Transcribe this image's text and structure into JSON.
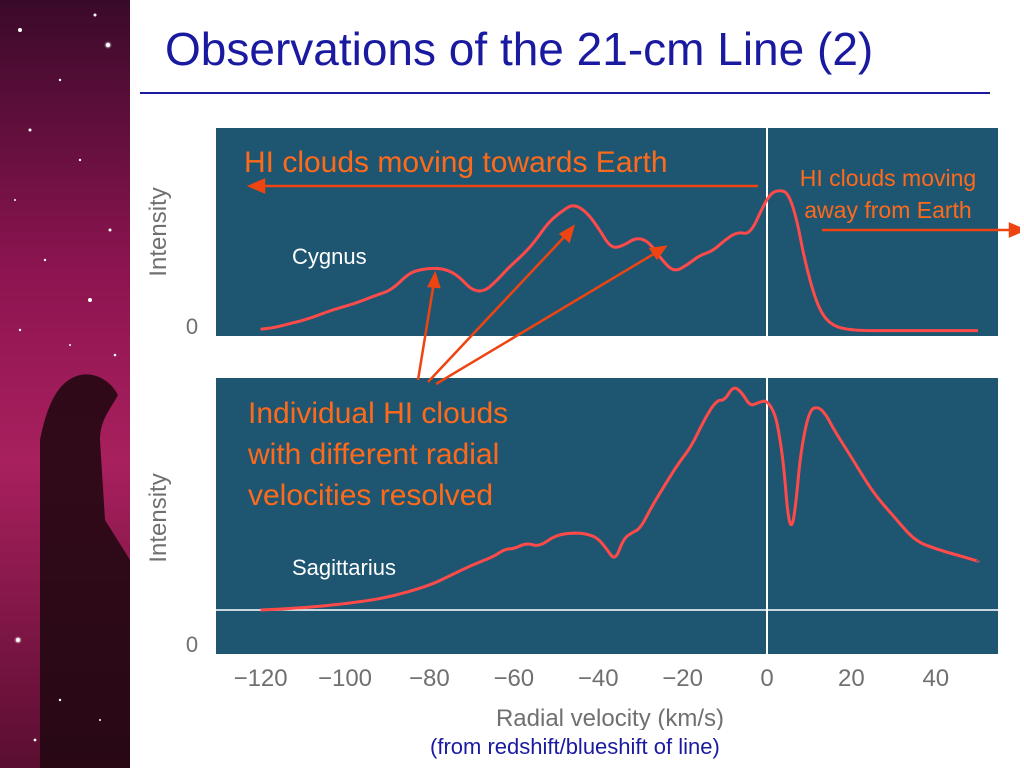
{
  "slide": {
    "title": "Observations of the 21-cm Line (2)",
    "footer_note": "(from redshift/blueshift of line)",
    "callouts": {
      "towards": "HI clouds moving towards Earth",
      "away_line1": "HI clouds moving",
      "away_line2": "away from Earth",
      "individual_line1": "Individual HI clouds",
      "individual_line2": "with different radial",
      "individual_line3": "velocities resolved"
    },
    "colors": {
      "title": "#1a1aa0",
      "panel": "#1e5672",
      "curve": "#ff4a4a",
      "callout": "#ff6a1a",
      "axis_text": "#707070"
    }
  },
  "chart_data": [
    {
      "type": "line",
      "panel_label": "Cygnus",
      "ylabel": "Intensity",
      "y_tick_labels": [
        "0"
      ],
      "xlim": [
        -130,
        55
      ],
      "x": [
        -120,
        -117,
        -113,
        -108,
        -103,
        -98,
        -93,
        -89,
        -85,
        -82,
        -79,
        -76,
        -73,
        -70,
        -67,
        -64,
        -61,
        -58,
        -55,
        -52,
        -49,
        -46,
        -43,
        -40,
        -37,
        -34,
        -31,
        -28,
        -25,
        -22,
        -19,
        -16,
        -13,
        -10,
        -7,
        -4,
        -1,
        1,
        3,
        5,
        7,
        9,
        12,
        15,
        20,
        30,
        40,
        50
      ],
      "y": [
        0.02,
        0.03,
        0.06,
        0.1,
        0.16,
        0.2,
        0.26,
        0.3,
        0.42,
        0.45,
        0.46,
        0.45,
        0.4,
        0.3,
        0.29,
        0.37,
        0.47,
        0.55,
        0.65,
        0.78,
        0.86,
        0.92,
        0.87,
        0.75,
        0.6,
        0.62,
        0.68,
        0.65,
        0.52,
        0.43,
        0.48,
        0.55,
        0.58,
        0.66,
        0.72,
        0.7,
        0.9,
        1.0,
        1.02,
        1.0,
        0.82,
        0.5,
        0.18,
        0.05,
        0.01,
        0.01,
        0.01,
        0.01
      ]
    },
    {
      "type": "line",
      "panel_label": "Sagittarius",
      "ylabel": "Intensity",
      "y_tick_labels": [
        "0"
      ],
      "xlabel": "Radial velocity (km/s)",
      "xlim": [
        -130,
        55
      ],
      "x_tick_labels": [
        "−120",
        "−100",
        "−80",
        "−60",
        "−40",
        "−20",
        "0",
        "20",
        "40"
      ],
      "x_ticks": [
        -120,
        -100,
        -80,
        -60,
        -40,
        -20,
        0,
        20,
        40
      ],
      "x": [
        -120,
        -110,
        -100,
        -90,
        -80,
        -75,
        -70,
        -65,
        -62,
        -60,
        -57,
        -54,
        -50,
        -45,
        -42,
        -40,
        -38,
        -36,
        -34,
        -32,
        -30,
        -27,
        -24,
        -21,
        -18,
        -15,
        -12,
        -10,
        -8,
        -6,
        -4,
        -2,
        0,
        2,
        3,
        4,
        5,
        6,
        7,
        8,
        10,
        12,
        14,
        16,
        20,
        25,
        30,
        35,
        40,
        45,
        50
      ],
      "y": [
        0.0,
        0.01,
        0.03,
        0.06,
        0.12,
        0.17,
        0.22,
        0.26,
        0.3,
        0.3,
        0.33,
        0.31,
        0.37,
        0.38,
        0.37,
        0.35,
        0.3,
        0.24,
        0.35,
        0.38,
        0.4,
        0.52,
        0.62,
        0.72,
        0.8,
        0.93,
        1.03,
        1.03,
        1.1,
        1.07,
        1.0,
        1.02,
        1.03,
        0.96,
        0.85,
        0.7,
        0.45,
        0.4,
        0.55,
        0.78,
        0.98,
        1.0,
        0.96,
        0.88,
        0.75,
        0.58,
        0.46,
        0.34,
        0.3,
        0.27,
        0.24
      ]
    }
  ]
}
